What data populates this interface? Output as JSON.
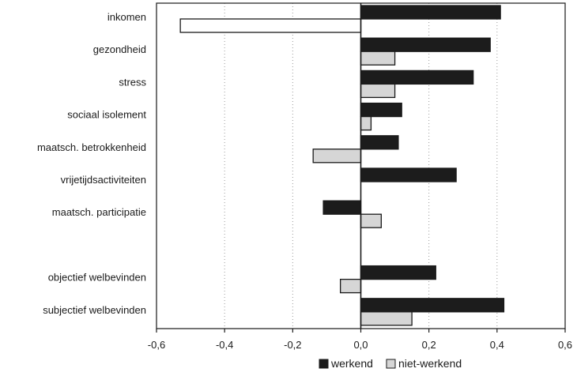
{
  "chart_data": {
    "type": "bar",
    "orientation": "horizontal",
    "categories": [
      "inkomen",
      "gezondheid",
      "stress",
      "sociaal isolement",
      "maatsch. betrokkenheid",
      "vrijetijdsactiviteiten",
      "maatsch. participatie",
      "",
      "objectief welbevinden",
      "subjectief welbevinden"
    ],
    "series": [
      {
        "name": "werkend",
        "color": "#1c1c1c",
        "values": [
          0.41,
          0.38,
          0.33,
          0.12,
          0.11,
          0.28,
          -0.11,
          null,
          0.22,
          0.42
        ]
      },
      {
        "name": "niet-werkend",
        "color": "#d6d6d6",
        "values": [
          -0.53,
          0.1,
          0.1,
          0.03,
          -0.14,
          null,
          0.06,
          null,
          -0.06,
          0.15
        ]
      }
    ],
    "xlim": [
      -0.6,
      0.6
    ],
    "x_ticks": [
      "-0,6",
      "-0,4",
      "-0,2",
      "0,0",
      "0,2",
      "0,4",
      "0,6"
    ],
    "x_tick_values": [
      -0.6,
      -0.4,
      -0.2,
      0.0,
      0.2,
      0.4,
      0.6
    ],
    "grid": "vertical dotted",
    "legend_position": "bottom"
  }
}
